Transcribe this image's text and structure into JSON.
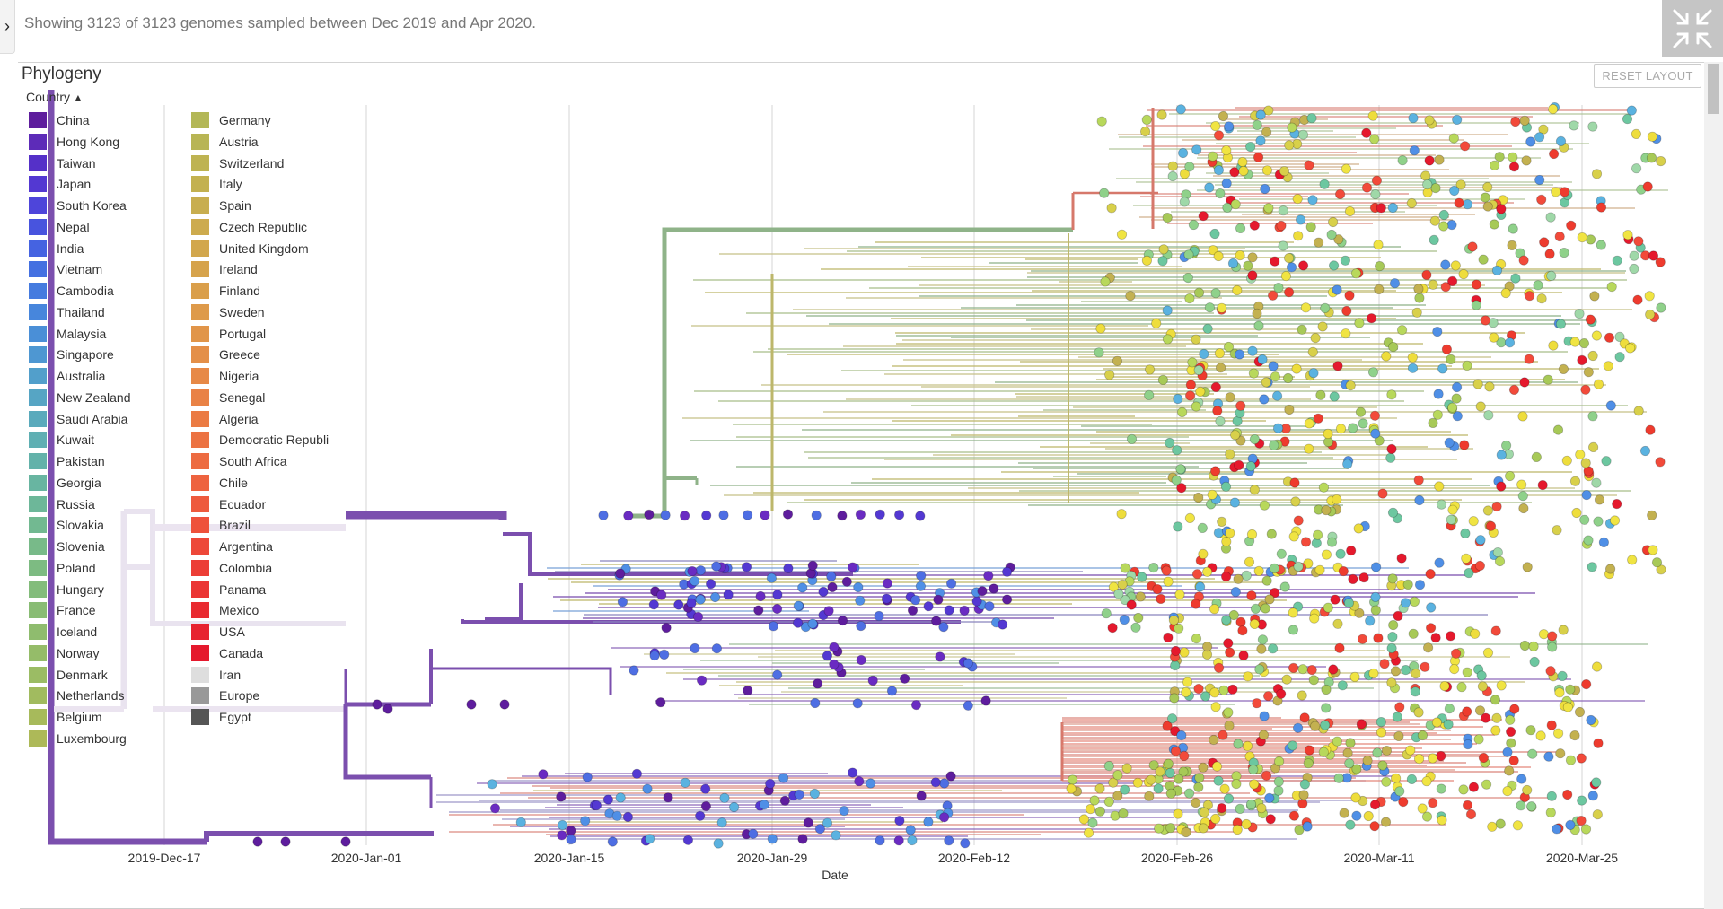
{
  "header": {
    "summary_text": "Showing 3123 of 3123 genomes sampled between Dec 2019 and Apr 2020.",
    "sidebar_toggle_icon": "chevron-right-icon",
    "fullscreen_icon": "minimize-arrows-icon"
  },
  "panel": {
    "title": "Phylogeny",
    "reset_label": "RESET LAYOUT",
    "legend_title": "Country"
  },
  "legend": {
    "column1": [
      {
        "label": "China",
        "color": "#5E1D9D"
      },
      {
        "label": "Hong Kong",
        "color": "#5D2BB8"
      },
      {
        "label": "Taiwan",
        "color": "#5530C8"
      },
      {
        "label": "Japan",
        "color": "#5338D2"
      },
      {
        "label": "South Korea",
        "color": "#4E45DA"
      },
      {
        "label": "Nepal",
        "color": "#4854DE"
      },
      {
        "label": "India",
        "color": "#4563E1"
      },
      {
        "label": "Vietnam",
        "color": "#4470E1"
      },
      {
        "label": "Cambodia",
        "color": "#457BDF"
      },
      {
        "label": "Thailand",
        "color": "#4786DC"
      },
      {
        "label": "Malaysia",
        "color": "#4A8FD7"
      },
      {
        "label": "Singapore",
        "color": "#4E97D2"
      },
      {
        "label": "Australia",
        "color": "#529FCB"
      },
      {
        "label": "New Zealand",
        "color": "#56A5C4"
      },
      {
        "label": "Saudi Arabia",
        "color": "#5AAABC"
      },
      {
        "label": "Kuwait",
        "color": "#5FAFB3"
      },
      {
        "label": "Pakistan",
        "color": "#63B2AA"
      },
      {
        "label": "Georgia",
        "color": "#68B5A1"
      },
      {
        "label": "Russia",
        "color": "#6DB799"
      },
      {
        "label": "Slovakia",
        "color": "#72B991"
      },
      {
        "label": "Slovenia",
        "color": "#78BA89"
      },
      {
        "label": "Poland",
        "color": "#7DBB82"
      },
      {
        "label": "Hungary",
        "color": "#83BC7B"
      },
      {
        "label": "France",
        "color": "#89BC74"
      },
      {
        "label": "Iceland",
        "color": "#8FBC6E"
      },
      {
        "label": "Norway",
        "color": "#95BC69"
      },
      {
        "label": "Denmark",
        "color": "#9BBC64"
      },
      {
        "label": "Netherlands",
        "color": "#A1BB5F"
      },
      {
        "label": "Belgium",
        "color": "#A7BA5B"
      },
      {
        "label": "Luxembourg",
        "color": "#ADB958"
      }
    ],
    "column2": [
      {
        "label": "Germany",
        "color": "#B3B756"
      },
      {
        "label": "Austria",
        "color": "#B8B554"
      },
      {
        "label": "Switzerland",
        "color": "#BEB352"
      },
      {
        "label": "Italy",
        "color": "#C3B150"
      },
      {
        "label": "Spain",
        "color": "#C8AE4F"
      },
      {
        "label": "Czech Republic",
        "color": "#CDAB4E"
      },
      {
        "label": "United Kingdom",
        "color": "#D2A74D"
      },
      {
        "label": "Ireland",
        "color": "#D6A34C"
      },
      {
        "label": "Finland",
        "color": "#DA9F4B"
      },
      {
        "label": "Sweden",
        "color": "#DE9A4A"
      },
      {
        "label": "Portugal",
        "color": "#E19549"
      },
      {
        "label": "Greece",
        "color": "#E48F48"
      },
      {
        "label": "Nigeria",
        "color": "#E78947"
      },
      {
        "label": "Senegal",
        "color": "#E98246"
      },
      {
        "label": "Algeria",
        "color": "#EB7B44"
      },
      {
        "label": "Democratic Republi",
        "color": "#EC7343"
      },
      {
        "label": "South Africa",
        "color": "#ED6B41"
      },
      {
        "label": "Chile",
        "color": "#EE633F"
      },
      {
        "label": "Ecuador",
        "color": "#EE5A3D"
      },
      {
        "label": "Brazil",
        "color": "#EE513B"
      },
      {
        "label": "Argentina",
        "color": "#ED4839"
      },
      {
        "label": "Colombia",
        "color": "#EC3E36"
      },
      {
        "label": "Panama",
        "color": "#EB3534"
      },
      {
        "label": "Mexico",
        "color": "#E92B31"
      },
      {
        "label": "USA",
        "color": "#E7222F"
      },
      {
        "label": "Canada",
        "color": "#E5192D"
      },
      {
        "label": "Iran",
        "color": "#DEDEDE"
      },
      {
        "label": "Europe",
        "color": "#999999"
      },
      {
        "label": "Egypt",
        "color": "#555555"
      }
    ]
  },
  "chart_data": {
    "type": "phylogeny-tree",
    "xlabel": "Date",
    "ticks": [
      "2019-Dec-17",
      "2020-Jan-01",
      "2020-Jan-15",
      "2020-Jan-29",
      "2020-Feb-12",
      "2020-Feb-26",
      "2020-Mar-11",
      "2020-Mar-25"
    ],
    "tip_count": 3123,
    "color_by": "Country",
    "grid": true
  }
}
